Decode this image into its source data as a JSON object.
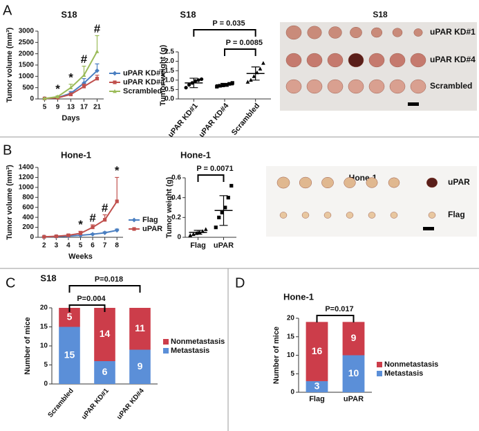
{
  "panel_labels": [
    "A",
    "B",
    "C",
    "D"
  ],
  "photos": [
    {
      "title": "S18",
      "rows": [
        "uPAR KD#1",
        "uPAR KD#4",
        "Scrambled"
      ]
    },
    {
      "title": "Hone-1",
      "rows": [
        "uPAR",
        "Flag"
      ]
    }
  ],
  "chart_data": [
    {
      "type": "line",
      "title": "S18",
      "xlabel": "Days",
      "ylabel": "Tumor volume (mm³)",
      "x": [
        5,
        9,
        13,
        17,
        21
      ],
      "xlim": [
        3,
        23
      ],
      "xticks": [
        5,
        9,
        13,
        17,
        21
      ],
      "ylim": [
        0,
        3000
      ],
      "yticks": [
        0,
        500,
        1000,
        1500,
        2000,
        2500,
        3000
      ],
      "series": [
        {
          "name": "uPAR KD#1",
          "color": "#4a7fc1",
          "shape": "diamond",
          "values": [
            20,
            60,
            250,
            700,
            1250
          ],
          "errors": [
            10,
            20,
            80,
            200,
            300
          ]
        },
        {
          "name": "uPAR KD#4",
          "color": "#c0504d",
          "shape": "square",
          "values": [
            20,
            50,
            200,
            550,
            900
          ],
          "errors": [
            10,
            20,
            60,
            100,
            150
          ]
        },
        {
          "name": "Scrambled",
          "color": "#9bbb59",
          "shape": "triangle",
          "values": [
            20,
            100,
            500,
            1050,
            2100
          ],
          "errors": [
            10,
            40,
            150,
            400,
            700
          ]
        }
      ],
      "markers": [
        {
          "x": 9,
          "label": "*"
        },
        {
          "x": 13,
          "label": "*"
        },
        {
          "x": 17,
          "label": "#"
        },
        {
          "x": 21,
          "label": "#"
        }
      ]
    },
    {
      "type": "strip",
      "title": "S18",
      "ylabel": "Tumor weight (g)",
      "categories": [
        "uPAR KD#1",
        "uPAR KD#4",
        "Scrambled"
      ],
      "shapes": [
        "circle",
        "square",
        "triangle"
      ],
      "points": [
        [
          0.6,
          0.75,
          0.85,
          0.95,
          1.0,
          1.05
        ],
        [
          0.65,
          0.7,
          0.72,
          0.75,
          0.8,
          0.85
        ],
        [
          0.9,
          1.0,
          1.2,
          1.4,
          1.6,
          1.9
        ]
      ],
      "means": [
        0.85,
        0.75,
        1.35
      ],
      "sd": [
        0.25,
        0.08,
        0.35
      ],
      "ylim": [
        0,
        2.5
      ],
      "yticks": [
        {
          "value": 0,
          "label": "0.0"
        },
        0.5,
        {
          "value": 1,
          "label": "1.0"
        },
        1.5,
        {
          "value": 2,
          "label": "2.0"
        },
        2.5
      ],
      "brackets": [
        {
          "label": "P = 0.035",
          "between": [
            "uPAR KD#1",
            "Scrambled"
          ]
        },
        {
          "label": "P = 0.0085",
          "between": [
            "uPAR KD#4",
            "Scrambled"
          ]
        }
      ]
    },
    {
      "type": "line",
      "title": "Hone-1",
      "xlabel": "Weeks",
      "ylabel": "Tumor volume (mm³)",
      "x": [
        2,
        3,
        4,
        5,
        6,
        7,
        8
      ],
      "xlim": [
        1.5,
        8.5
      ],
      "xticks": [
        2,
        3,
        4,
        5,
        6,
        7,
        8
      ],
      "ylim": [
        0,
        1400
      ],
      "yticks": [
        0,
        200,
        400,
        600,
        800,
        1000,
        1200,
        1400
      ],
      "series": [
        {
          "name": "Flag",
          "color": "#4a7fc1",
          "shape": "diamond",
          "values": [
            10,
            15,
            25,
            40,
            60,
            90,
            140
          ],
          "errors": [
            5,
            5,
            8,
            10,
            15,
            20,
            25
          ]
        },
        {
          "name": "uPAR",
          "color": "#c0504d",
          "shape": "square",
          "values": [
            10,
            20,
            40,
            80,
            200,
            350,
            720
          ],
          "errors": [
            5,
            10,
            20,
            40,
            50,
            100,
            480
          ]
        }
      ],
      "markers": [
        {
          "x": 5,
          "label": "*"
        },
        {
          "x": 6,
          "label": "#"
        },
        {
          "x": 7,
          "label": "#"
        },
        {
          "x": 8,
          "label": "*"
        }
      ]
    },
    {
      "type": "strip",
      "title": "Hone-1",
      "ylabel": "Tumor weight (g)",
      "categories": [
        "Flag",
        "uPAR"
      ],
      "shapes": [
        "triangle",
        "square"
      ],
      "points": [
        [
          0.02,
          0.03,
          0.04,
          0.05,
          0.06,
          0.08
        ],
        [
          0.1,
          0.2,
          0.25,
          0.3,
          0.4,
          0.52
        ]
      ],
      "means": [
        0.05,
        0.27
      ],
      "sd": [
        0.02,
        0.15
      ],
      "ylim": [
        0,
        0.6
      ],
      "yticks": [
        0,
        0.2,
        0.4,
        0.6
      ],
      "brackets": [
        {
          "label": "P = 0.0071",
          "between": [
            "Flag",
            "uPAR"
          ]
        }
      ]
    },
    {
      "type": "stacked_bar",
      "title": "S18",
      "ylabel": "Number of mice",
      "categories": [
        "Scrambled",
        "uPAR KD#1",
        "uPAR KD#4"
      ],
      "series": [
        {
          "name": "Metastasis",
          "color": "#5b8fd8",
          "values": [
            15,
            6,
            9
          ]
        },
        {
          "name": "Nonmetastasis",
          "color": "#cc3d4a",
          "values": [
            5,
            14,
            11
          ]
        }
      ],
      "ylim": [
        0,
        20
      ],
      "yticks": [
        0,
        5,
        10,
        15,
        20
      ],
      "brackets": [
        {
          "label": "P=0.018",
          "between": [
            "Scrambled",
            "uPAR KD#4"
          ]
        },
        {
          "label": "P=0.004",
          "between": [
            "Scrambled",
            "uPAR KD#1"
          ]
        }
      ]
    },
    {
      "type": "stacked_bar",
      "title": "Hone-1",
      "ylabel": "Number of mice",
      "categories": [
        "Flag",
        "uPAR"
      ],
      "series": [
        {
          "name": "Metastasis",
          "color": "#5b8fd8",
          "values": [
            3,
            10
          ]
        },
        {
          "name": "Nonmetastasis",
          "color": "#cc3d4a",
          "values": [
            16,
            9
          ]
        }
      ],
      "ylim": [
        0,
        20
      ],
      "yticks": [
        0,
        5,
        10,
        15,
        20
      ],
      "brackets": [
        {
          "label": "P=0.017",
          "between": [
            "Flag",
            "uPAR"
          ]
        }
      ]
    }
  ]
}
